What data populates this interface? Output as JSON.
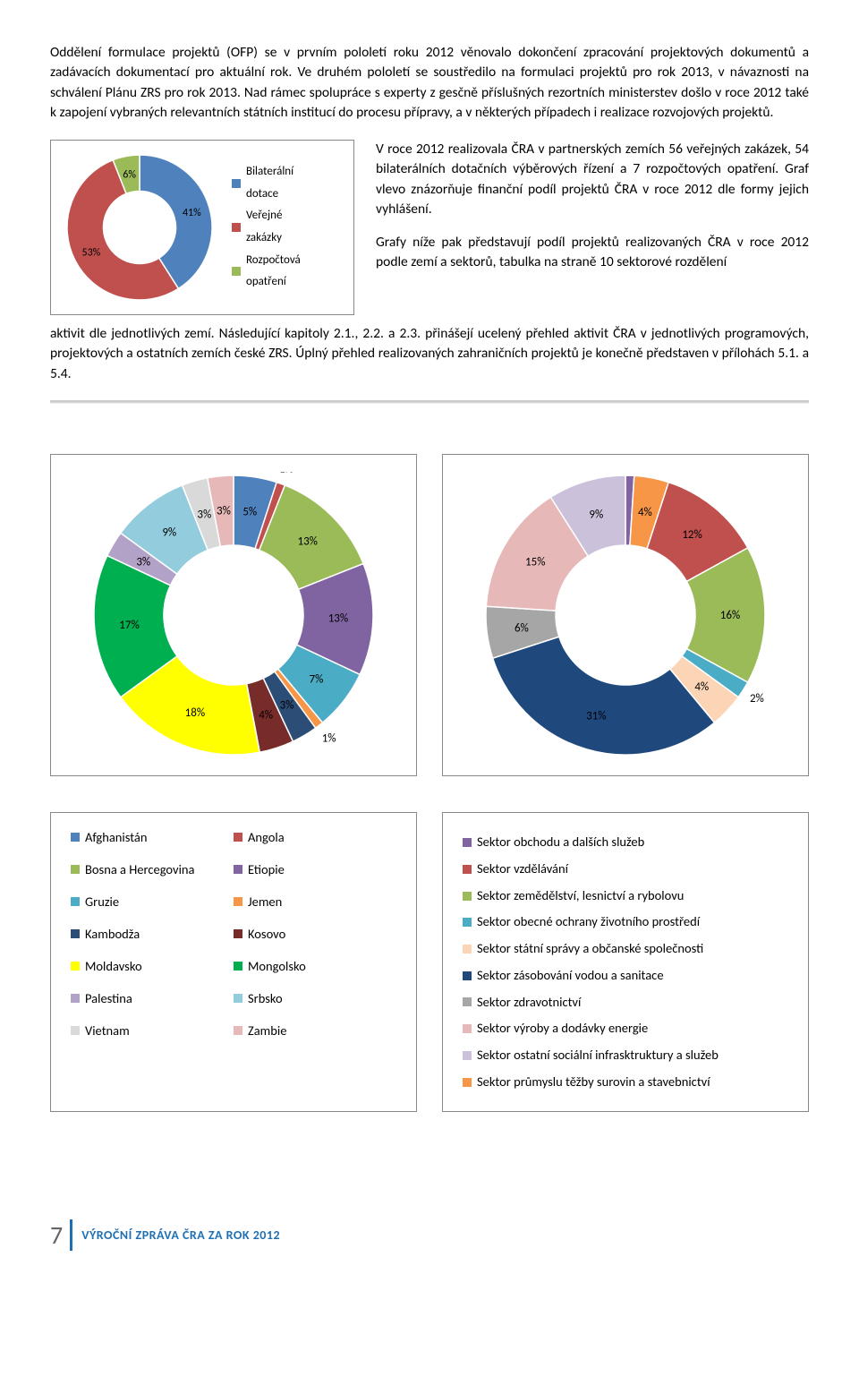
{
  "para1": "Oddělení formulace projektů (OFP) se v prvním pololetí roku 2012 věnovalo dokončení zpracování projektových dokumentů a zadávacích dokumentací pro aktuální rok. Ve druhém pololetí se soustředilo na formulaci projektů pro rok 2013, v návaznosti na schválení Plánu ZRS pro rok 2013. Nad rámec spolupráce s experty z gesčně příslušných rezortních ministerstev došlo v roce 2012 také k zapojení vybraných relevantních státních institucí do procesu přípravy, a v některých případech i realizace rozvojových projektů.",
  "chart1": {
    "type": "donut",
    "inner": 0.55,
    "slices": [
      {
        "label": "Bilaterální dotace",
        "value": 41,
        "color": "#4f81bd",
        "text": "41%"
      },
      {
        "label": "Veřejné zakázky",
        "value": 53,
        "color": "#c0504d",
        "text": "53%"
      },
      {
        "label": "Rozpočtová opatření",
        "value": 6,
        "color": "#9bbb59",
        "text": "6%"
      }
    ],
    "legend": [
      "Bilaterální dotace",
      "Veřejné zakázky",
      "Rozpočtová opatření"
    ],
    "legend_colors": [
      "#4f81bd",
      "#c0504d",
      "#9bbb59"
    ]
  },
  "rt1": "V roce 2012 realizovala ČRA v partnerských zemích 56 veřejných zakázek, 54 bilaterálních dotačních výběrových řízení a 7 rozpočtových opatření. Graf vlevo znázorňuje finanční podíl projektů ČRA v roce 2012 dle formy jejich vyhlášení.",
  "rt2": "Grafy níže pak představují podíl projektů realizovaných ČRA v roce 2012 podle zemí a sektorů, tabulka na straně 10 sektorové rozdělení aktivit dle jednotlivých zemí. Následující kapitoly 2.1., 2.2. a 2.3. přinášejí ucelený přehled aktivit ČRA v jednotlivých programových, projektových a ostatních zemích české ZRS. Úplný přehled realizovaných zahraničních projektů je konečně představen v přílohách 5.1. a 5.4.",
  "chart_countries": {
    "type": "donut",
    "inner": 0.5,
    "slices": [
      {
        "v": 5,
        "c": "#4f81bd",
        "t": "5%"
      },
      {
        "v": 1,
        "c": "#c0504d",
        "t": "1%"
      },
      {
        "v": 13,
        "c": "#9bbb59",
        "t": "13%"
      },
      {
        "v": 13,
        "c": "#8064a2",
        "t": "13%"
      },
      {
        "v": 7,
        "c": "#4bacc6",
        "t": "7%"
      },
      {
        "v": 1,
        "c": "#f79646",
        "t": "1%"
      },
      {
        "v": 3,
        "c": "#2c4d75",
        "t": "3%"
      },
      {
        "v": 4,
        "c": "#772c2a",
        "t": "4%"
      },
      {
        "v": 18,
        "c": "#ffff00",
        "t": "18%"
      },
      {
        "v": 17,
        "c": "#00b050",
        "t": "17%"
      },
      {
        "v": 3,
        "c": "#b3a2c7",
        "t": "3%"
      },
      {
        "v": 9,
        "c": "#93cddd",
        "t": "9%"
      },
      {
        "v": 3,
        "c": "#d9d9d9",
        "t": "3%"
      },
      {
        "v": 3,
        "c": "#e6b9b8",
        "t": "3%"
      }
    ]
  },
  "chart_sectors": {
    "type": "donut",
    "inner": 0.5,
    "slices": [
      {
        "v": 1,
        "c": "#8064a2",
        "t": "1%"
      },
      {
        "v": 4,
        "c": "#f79646",
        "t": "4%"
      },
      {
        "v": 12,
        "c": "#c0504d",
        "t": "12%"
      },
      {
        "v": 16,
        "c": "#9bbb59",
        "t": "16%"
      },
      {
        "v": 2,
        "c": "#4bacc6",
        "t": "2%"
      },
      {
        "v": 4,
        "c": "#fbd5b5",
        "t": "4%"
      },
      {
        "v": 31,
        "c": "#1f497d",
        "t": "31%"
      },
      {
        "v": 6,
        "c": "#a6a6a6",
        "t": "6%"
      },
      {
        "v": 15,
        "c": "#e6b9b8",
        "t": "15%"
      },
      {
        "v": 9,
        "c": "#ccc1da",
        "t": "9%"
      }
    ]
  },
  "legend_countries": {
    "cols": [
      [
        {
          "c": "#4f81bd",
          "t": "Afghanistán"
        },
        {
          "c": "#9bbb59",
          "t": "Bosna a Hercegovina"
        },
        {
          "c": "#4bacc6",
          "t": "Gruzie"
        },
        {
          "c": "#2c4d75",
          "t": "Kambodža"
        },
        {
          "c": "#ffff00",
          "t": "Moldavsko"
        },
        {
          "c": "#b3a2c7",
          "t": "Palestina"
        },
        {
          "c": "#d9d9d9",
          "t": "Vietnam"
        }
      ],
      [
        {
          "c": "#c0504d",
          "t": "Angola"
        },
        {
          "c": "#8064a2",
          "t": "Etiopie"
        },
        {
          "c": "#f79646",
          "t": "Jemen"
        },
        {
          "c": "#772c2a",
          "t": "Kosovo"
        },
        {
          "c": "#00b050",
          "t": "Mongolsko"
        },
        {
          "c": "#93cddd",
          "t": "Srbsko"
        },
        {
          "c": "#e6b9b8",
          "t": "Zambie"
        }
      ]
    ]
  },
  "legend_sectors": {
    "items": [
      {
        "c": "#8064a2",
        "t": "Sektor obchodu a dalších služeb"
      },
      {
        "c": "#c0504d",
        "t": "Sektor vzdělávání"
      },
      {
        "c": "#9bbb59",
        "t": "Sektor zemědělství, lesnictví a rybolovu"
      },
      {
        "c": "#4bacc6",
        "t": "Sektor obecné ochrany životního prostředí"
      },
      {
        "c": "#fbd5b5",
        "t": "Sektor státní správy a občanské společnosti"
      },
      {
        "c": "#1f497d",
        "t": "Sektor zásobování vodou a sanitace"
      },
      {
        "c": "#a6a6a6",
        "t": "Sektor zdravotnictví"
      },
      {
        "c": "#e6b9b8",
        "t": "Sektor výroby a dodávky energie"
      },
      {
        "c": "#ccc1da",
        "t": "Sektor ostatní sociální infrasktruktury a služeb"
      },
      {
        "c": "#f79646",
        "t": "Sektor průmyslu těžby surovin a stavebnictví"
      }
    ]
  },
  "footer": {
    "page": "7",
    "title": "VÝROČNÍ ZPRÁVA ČRA ZA ROK 2012"
  }
}
